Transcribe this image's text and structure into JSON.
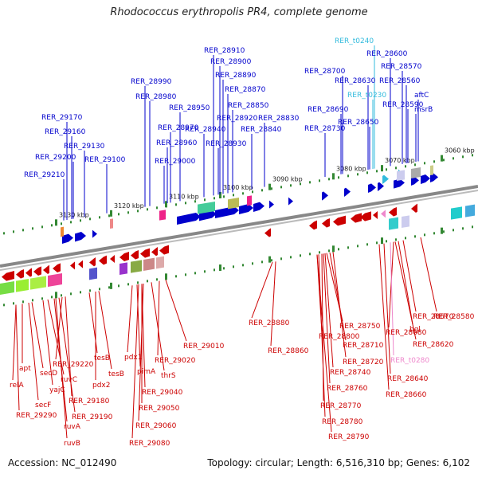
{
  "header": {
    "title": "Rhodococcus erythropolis PR4, complete genome"
  },
  "footer": {
    "accession": "Accession: NC_012490",
    "topology": "Topology: circular; Length: 6,516,310 bp; Genes: 6,102"
  },
  "colors": {
    "forward_gene": "#0000cc",
    "reverse_gene": "#cc0000",
    "trna_forward": "#33bbdd",
    "trna_reverse": "#ee88cc",
    "backbone": "#888888",
    "tick": "#338833"
  },
  "scale": {
    "tick_labels": [
      "3060 kbp",
      "3070 kbp",
      "3080 kbp",
      "3090 kbp",
      "3100 kbp",
      "3110 kbp",
      "3120 kbp",
      "3130 kbp"
    ]
  },
  "forward_labels": [
    {
      "text": "RER_t0240",
      "color": "#33bbdd"
    },
    {
      "text": "RER_28600",
      "color": "#0000cc"
    },
    {
      "text": "RER_28570",
      "color": "#0000cc"
    },
    {
      "text": "RER_28700",
      "color": "#0000cc"
    },
    {
      "text": "RER_28630",
      "color": "#0000cc"
    },
    {
      "text": "RER_28560",
      "color": "#0000cc"
    },
    {
      "text": "RER_t0230",
      "color": "#33bbdd"
    },
    {
      "text": "aftC",
      "color": "#0000cc"
    },
    {
      "text": "RER_28590",
      "color": "#0000cc"
    },
    {
      "text": "msrB",
      "color": "#0000cc"
    },
    {
      "text": "RER_28690",
      "color": "#0000cc"
    },
    {
      "text": "RER_28650",
      "color": "#0000cc"
    },
    {
      "text": "RER_28730",
      "color": "#0000cc"
    },
    {
      "text": "RER_28910",
      "color": "#0000cc"
    },
    {
      "text": "RER_28900",
      "color": "#0000cc"
    },
    {
      "text": "RER_28890",
      "color": "#0000cc"
    },
    {
      "text": "RER_28870",
      "color": "#0000cc"
    },
    {
      "text": "RER_28850",
      "color": "#0000cc"
    },
    {
      "text": "RER_28830",
      "color": "#0000cc"
    },
    {
      "text": "RER_28840",
      "color": "#0000cc"
    },
    {
      "text": "RER_28920",
      "color": "#0000cc"
    },
    {
      "text": "RER_28940",
      "color": "#0000cc"
    },
    {
      "text": "RER_28930",
      "color": "#0000cc"
    },
    {
      "text": "RER_28990",
      "color": "#0000cc"
    },
    {
      "text": "RER_28980",
      "color": "#0000cc"
    },
    {
      "text": "RER_28950",
      "color": "#0000cc"
    },
    {
      "text": "RER_28970",
      "color": "#0000cc"
    },
    {
      "text": "RER_28960",
      "color": "#0000cc"
    },
    {
      "text": "RER_29000",
      "color": "#0000cc"
    },
    {
      "text": "RER_29170",
      "color": "#0000cc"
    },
    {
      "text": "RER_29160",
      "color": "#0000cc"
    },
    {
      "text": "RER_29130",
      "color": "#0000cc"
    },
    {
      "text": "RER_29200",
      "color": "#0000cc"
    },
    {
      "text": "RER_29100",
      "color": "#0000cc"
    },
    {
      "text": "RER_29210",
      "color": "#0000cc"
    }
  ],
  "reverse_labels": [
    {
      "text": "RER_28580",
      "color": "#cc0000"
    },
    {
      "text": "RER_28670",
      "color": "#cc0000"
    },
    {
      "text": "bgl",
      "color": "#cc0000"
    },
    {
      "text": "RER_28620",
      "color": "#cc0000"
    },
    {
      "text": "RER_28680",
      "color": "#cc0000"
    },
    {
      "text": "RER_t0280",
      "color": "#ee88cc"
    },
    {
      "text": "RER_28640",
      "color": "#cc0000"
    },
    {
      "text": "RER_28660",
      "color": "#cc0000"
    },
    {
      "text": "RER_28750",
      "color": "#cc0000"
    },
    {
      "text": "RER_28800",
      "color": "#cc0000"
    },
    {
      "text": "RER_28710",
      "color": "#cc0000"
    },
    {
      "text": "RER_28720",
      "color": "#cc0000"
    },
    {
      "text": "RER_28740",
      "color": "#cc0000"
    },
    {
      "text": "RER_28760",
      "color": "#cc0000"
    },
    {
      "text": "RER_28770",
      "color": "#cc0000"
    },
    {
      "text": "RER_28780",
      "color": "#cc0000"
    },
    {
      "text": "RER_28790",
      "color": "#cc0000"
    },
    {
      "text": "RER_28880",
      "color": "#cc0000"
    },
    {
      "text": "RER_28860",
      "color": "#cc0000"
    },
    {
      "text": "RER_29010",
      "color": "#cc0000"
    },
    {
      "text": "RER_29020",
      "color": "#cc0000"
    },
    {
      "text": "thrS",
      "color": "#cc0000"
    },
    {
      "text": "pdx1",
      "color": "#cc0000"
    },
    {
      "text": "pimA",
      "color": "#cc0000"
    },
    {
      "text": "RER_29040",
      "color": "#cc0000"
    },
    {
      "text": "RER_29050",
      "color": "#cc0000"
    },
    {
      "text": "RER_29060",
      "color": "#cc0000"
    },
    {
      "text": "RER_29080",
      "color": "#cc0000"
    },
    {
      "text": "tesB",
      "color": "#cc0000"
    },
    {
      "text": "tesB",
      "color": "#cc0000"
    },
    {
      "text": "pdx2",
      "color": "#cc0000"
    },
    {
      "text": "RER_29220",
      "color": "#cc0000"
    },
    {
      "text": "RER_29180",
      "color": "#cc0000"
    },
    {
      "text": "RER_29190",
      "color": "#cc0000"
    },
    {
      "text": "apt",
      "color": "#cc0000"
    },
    {
      "text": "secD",
      "color": "#cc0000"
    },
    {
      "text": "ruvC",
      "color": "#cc0000"
    },
    {
      "text": "relA",
      "color": "#cc0000"
    },
    {
      "text": "yajC",
      "color": "#cc0000"
    },
    {
      "text": "secF",
      "color": "#cc0000"
    },
    {
      "text": "RER_29290",
      "color": "#cc0000"
    },
    {
      "text": "ruvA",
      "color": "#cc0000"
    },
    {
      "text": "ruvB",
      "color": "#cc0000"
    }
  ]
}
